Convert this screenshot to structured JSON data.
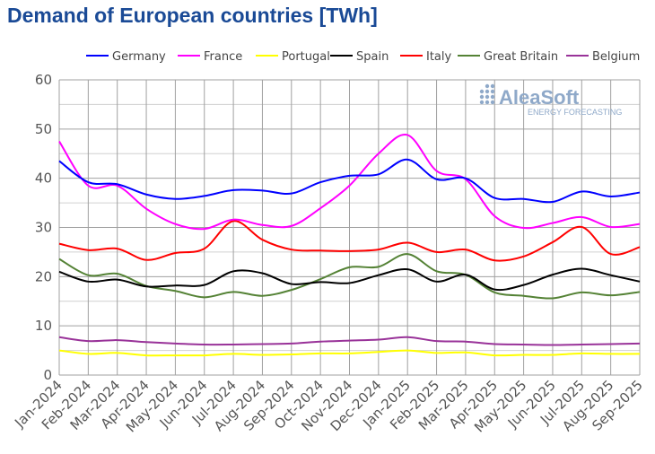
{
  "chart_data": {
    "type": "line",
    "title": "Demand of European countries [TWh]",
    "xlabel": "",
    "ylabel": "",
    "ylim": [
      0,
      60
    ],
    "yticks": [
      0,
      10,
      20,
      30,
      40,
      50,
      60
    ],
    "grid": true,
    "legend_position": "top",
    "logo": "AleaSoft ENERGY FORECASTING",
    "categories": [
      "Jan-2024",
      "Feb-2024",
      "Mar-2024",
      "Apr-2024",
      "May-2024",
      "Jun-2024",
      "Jul-2024",
      "Aug-2024",
      "Sep-2024",
      "Oct-2024",
      "Nov-2024",
      "Dec-2024",
      "Jan-2025",
      "Feb-2025",
      "Mar-2025",
      "Apr-2025",
      "May-2025",
      "Jun-2025",
      "Jul-2025",
      "Aug-2025",
      "Sep-2025"
    ],
    "series": [
      {
        "name": "Germany",
        "color": "#0000ff",
        "values": [
          43.5,
          39.2,
          38.8,
          36.7,
          35.8,
          36.4,
          37.6,
          37.5,
          36.9,
          39.2,
          40.5,
          40.8,
          43.8,
          39.8,
          40.0,
          36.0,
          35.8,
          35.2,
          37.3,
          36.3,
          37.1
        ]
      },
      {
        "name": "France",
        "color": "#ff00ff",
        "values": [
          47.5,
          38.5,
          38.5,
          33.8,
          30.7,
          29.7,
          31.6,
          30.5,
          30.3,
          33.9,
          38.5,
          45.0,
          48.8,
          41.5,
          39.8,
          32.3,
          29.9,
          30.9,
          32.1,
          30.1,
          30.7
        ]
      },
      {
        "name": "Portugal",
        "color": "#ffff00",
        "values": [
          5.0,
          4.3,
          4.5,
          4.0,
          4.0,
          4.0,
          4.3,
          4.1,
          4.2,
          4.4,
          4.4,
          4.7,
          5.0,
          4.5,
          4.6,
          4.0,
          4.1,
          4.1,
          4.4,
          4.3,
          4.3
        ]
      },
      {
        "name": "Spain",
        "color": "#000000",
        "values": [
          21.0,
          19.0,
          19.4,
          18.0,
          18.2,
          18.3,
          21.1,
          20.7,
          18.5,
          18.9,
          18.7,
          20.3,
          21.5,
          19.0,
          20.4,
          17.4,
          18.3,
          20.4,
          21.6,
          20.3,
          19.0
        ]
      },
      {
        "name": "Italy",
        "color": "#ff0000",
        "values": [
          26.7,
          25.4,
          25.7,
          23.4,
          24.8,
          25.7,
          31.3,
          27.5,
          25.5,
          25.3,
          25.2,
          25.5,
          26.9,
          25.0,
          25.5,
          23.3,
          24.1,
          27.0,
          30.1,
          24.6,
          26.0
        ]
      },
      {
        "name": "Great Britain",
        "color": "#548235",
        "values": [
          23.6,
          20.3,
          20.6,
          18.1,
          17.1,
          15.8,
          16.9,
          16.1,
          17.3,
          19.5,
          21.9,
          22.0,
          24.6,
          21.1,
          20.4,
          16.8,
          16.1,
          15.6,
          16.8,
          16.2,
          16.9
        ]
      },
      {
        "name": "Belgium",
        "color": "#993399",
        "values": [
          7.7,
          6.9,
          7.1,
          6.7,
          6.4,
          6.2,
          6.2,
          6.3,
          6.4,
          6.8,
          7.0,
          7.2,
          7.7,
          6.9,
          6.8,
          6.3,
          6.2,
          6.1,
          6.2,
          6.3,
          6.4
        ]
      }
    ]
  }
}
